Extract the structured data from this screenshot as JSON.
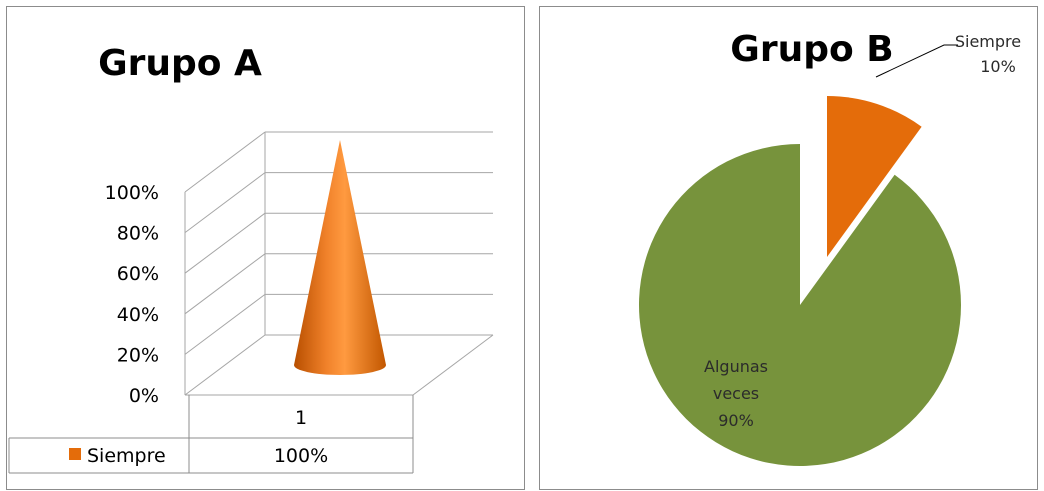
{
  "chart_data": [
    {
      "type": "bar",
      "title": "Grupo A",
      "categories": [
        "1"
      ],
      "series": [
        {
          "name": "Siempre",
          "values": [
            1.0
          ]
        }
      ],
      "yticks": [
        "0%",
        "20%",
        "40%",
        "60%",
        "80%",
        "100%"
      ],
      "ylim": [
        0,
        1
      ],
      "data_table": [
        {
          "series": "Siempre",
          "value_label": "100%"
        }
      ],
      "grid": true,
      "colors": {
        "series": "#e46c0a",
        "grid": "#a6a6a6"
      }
    },
    {
      "type": "pie",
      "title": "Grupo B",
      "slices": [
        {
          "name": "Siempre",
          "pct_label": "10%",
          "value": 10,
          "color": "#e46c0a"
        },
        {
          "name": "Algunas veces",
          "name_lines": [
            "Algunas",
            "veces"
          ],
          "pct_label": "90%",
          "value": 90,
          "color": "#77933c"
        }
      ]
    }
  ]
}
